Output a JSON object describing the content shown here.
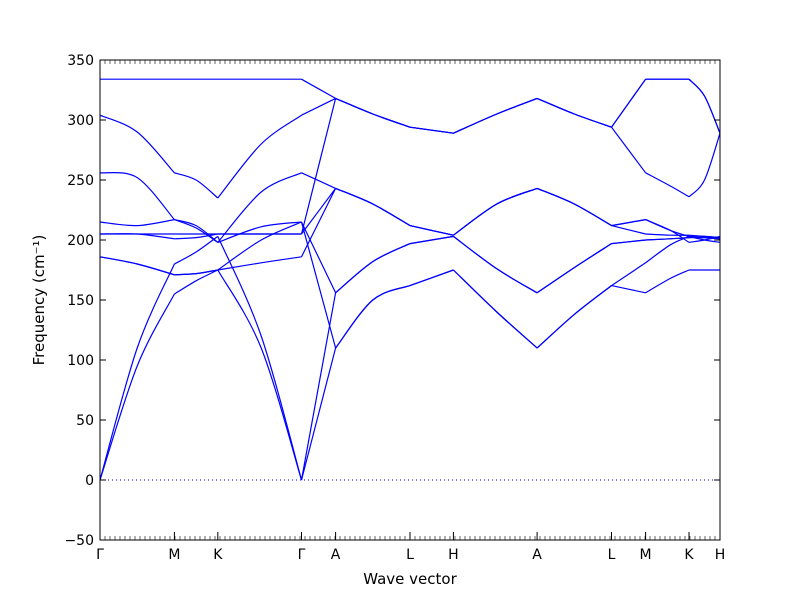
{
  "chart_data": {
    "type": "line",
    "xlabel": "Wave vector",
    "ylabel": "Frequency (cm⁻¹)",
    "ylim": [
      -50,
      350
    ],
    "yticks": [
      -50,
      0,
      50,
      100,
      150,
      200,
      250,
      300,
      350
    ],
    "high_symmetry_points": [
      {
        "label": "Γ",
        "x": 0.0
      },
      {
        "label": "M",
        "x": 1.2
      },
      {
        "label": "K",
        "x": 1.9
      },
      {
        "label": "Γ",
        "x": 3.25
      },
      {
        "label": "A",
        "x": 3.8
      },
      {
        "label": "L",
        "x": 5.0
      },
      {
        "label": "H",
        "x": 5.7
      },
      {
        "label": "A",
        "x": 7.05
      },
      {
        "label": "L",
        "x": 8.25
      },
      {
        "label": "M",
        "x": 8.8
      },
      {
        "label": "K",
        "x": 9.5
      },
      {
        "label": "H",
        "x": 10.0
      }
    ],
    "xlim": [
      0,
      10.0
    ],
    "zero_line": {
      "y": 0,
      "style": "dotted"
    },
    "series": [
      {
        "x": [
          0.0,
          0.6,
          1.2,
          1.55,
          1.9,
          2.6,
          3.25,
          3.8,
          4.4,
          5.0,
          5.7,
          6.4,
          7.05,
          7.65,
          8.25,
          8.8,
          9.2,
          9.5,
          9.75,
          10.0
        ],
        "values": [
          0,
          95,
          155,
          166,
          175,
          110,
          0,
          110,
          150,
          162,
          175,
          140,
          110,
          138,
          162,
          156,
          168,
          175,
          175,
          175
        ]
      },
      {
        "x": [
          0.0,
          0.6,
          1.2,
          1.55,
          1.9,
          2.6,
          3.25,
          3.8,
          4.4,
          5.0,
          5.7,
          6.4,
          7.05,
          7.65,
          8.25,
          8.8,
          9.2,
          9.5,
          9.75,
          10.0
        ],
        "values": [
          0,
          110,
          180,
          190,
          203,
          120,
          0,
          156,
          182,
          197,
          203,
          176,
          156,
          177,
          197,
          200,
          201,
          202,
          202,
          201
        ]
      },
      {
        "x": [
          0.0,
          0.6,
          1.2,
          1.55,
          1.9,
          2.6,
          3.25,
          3.8,
          4.4,
          5.0,
          5.7,
          6.4,
          7.05,
          7.65,
          8.25,
          8.8,
          9.2,
          9.5,
          9.75,
          10.0
        ],
        "values": [
          186,
          180,
          171,
          172,
          175,
          181,
          186,
          243,
          230,
          212,
          204,
          230,
          243,
          230,
          212,
          205,
          204,
          204,
          203,
          202
        ]
      },
      {
        "x": [
          0.0,
          0.6,
          1.2,
          1.55,
          1.9,
          2.6,
          3.25,
          3.8,
          4.4,
          5.0,
          5.7,
          6.4,
          7.05,
          7.65,
          8.25,
          8.8,
          9.2,
          9.5,
          9.75,
          10.0
        ],
        "values": [
          205,
          205,
          205,
          205,
          205,
          205,
          205,
          243,
          230,
          212,
          204,
          230,
          243,
          230,
          212,
          217,
          208,
          198,
          200,
          203
        ]
      },
      {
        "x": [
          0.0,
          0.6,
          1.2,
          1.55,
          1.9,
          2.6,
          3.25,
          3.8,
          4.4,
          5.0,
          5.7,
          6.4,
          7.05,
          7.65,
          8.25,
          8.8,
          9.2,
          9.5,
          9.75,
          10.0
        ],
        "values": [
          205,
          205,
          201,
          202,
          205,
          205,
          205,
          318,
          305,
          294,
          289,
          305,
          318,
          305,
          294,
          256,
          245,
          236,
          250,
          289
        ]
      },
      {
        "x": [
          0.0,
          0.6,
          1.2,
          1.55,
          1.9,
          2.6,
          3.25,
          3.8,
          4.4,
          5.0,
          5.7,
          6.4,
          7.05,
          7.65,
          8.25,
          8.8,
          9.2,
          9.5,
          9.75,
          10.0
        ],
        "values": [
          215,
          212,
          217,
          210,
          198,
          211,
          215,
          156,
          182,
          197,
          203,
          176,
          156,
          177,
          197,
          200,
          201,
          202,
          202,
          201
        ]
      },
      {
        "x": [
          0.0,
          0.6,
          1.2,
          1.55,
          1.9,
          2.6,
          3.25,
          3.8,
          4.4,
          5.0,
          5.7,
          6.4,
          7.05,
          7.65,
          8.25,
          8.8,
          9.2,
          9.5,
          9.75,
          10.0
        ],
        "values": [
          186,
          180,
          171,
          172,
          175,
          200,
          215,
          110,
          150,
          162,
          175,
          140,
          110,
          138,
          162,
          181,
          196,
          203,
          200,
          198
        ]
      },
      {
        "x": [
          0.0,
          0.6,
          1.2,
          1.55,
          1.9,
          2.6,
          3.25,
          3.8,
          4.4,
          5.0,
          5.7,
          6.4,
          7.05,
          7.65,
          8.25,
          8.8,
          9.2,
          9.5,
          9.75,
          10.0
        ],
        "values": [
          256,
          252,
          217,
          212,
          198,
          240,
          256,
          243,
          230,
          212,
          204,
          230,
          243,
          230,
          212,
          217,
          208,
          203,
          203,
          202
        ]
      },
      {
        "x": [
          0.0,
          0.6,
          1.2,
          1.55,
          1.9,
          2.6,
          3.25,
          3.8,
          4.4,
          5.0,
          5.7,
          6.4,
          7.05,
          7.65,
          8.25,
          8.8,
          9.2,
          9.5,
          9.75,
          10.0
        ],
        "values": [
          304,
          290,
          256,
          250,
          235,
          280,
          304,
          318,
          305,
          294,
          289,
          305,
          318,
          305,
          294,
          334,
          334,
          334,
          320,
          289
        ]
      },
      {
        "x": [
          0.0,
          0.6,
          1.2,
          1.55,
          1.9,
          2.6,
          3.25,
          3.8,
          4.4,
          5.0,
          5.7,
          6.4,
          7.05,
          7.65,
          8.25,
          8.8,
          9.2,
          9.5,
          9.75,
          10.0
        ],
        "values": [
          334,
          334,
          334,
          334,
          334,
          334,
          334,
          318,
          305,
          294,
          289,
          305,
          318,
          305,
          294,
          334,
          334,
          334,
          320,
          289
        ]
      }
    ]
  }
}
